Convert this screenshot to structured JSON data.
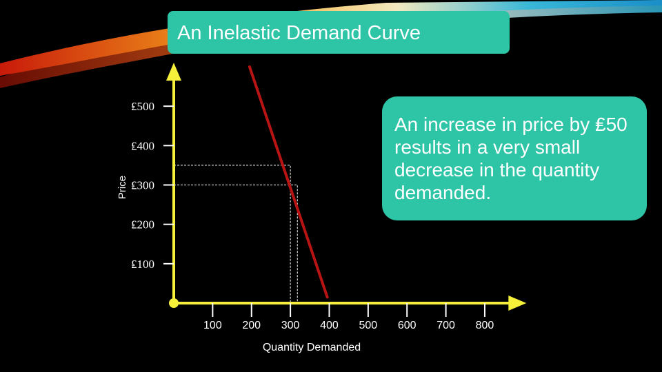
{
  "slide": {
    "title": "An Inelastic Demand Curve",
    "note": "An increase in price by ₤50 results in a very small decrease in the quantity demanded."
  },
  "colors": {
    "background": "#000000",
    "box": "#2ec4a6",
    "axis": "#f7f03a",
    "curve": "#b81414",
    "guides": "#ffffff"
  },
  "chart_data": {
    "type": "line",
    "xlabel": "Quantity Demanded",
    "ylabel": "Price",
    "x_ticks": [
      100,
      200,
      300,
      400,
      500,
      600,
      700,
      800
    ],
    "x_tick_labels": [
      "100",
      "200",
      "300",
      "400",
      "500",
      "600",
      "700",
      "800"
    ],
    "y_ticks": [
      100,
      200,
      300,
      400,
      500
    ],
    "y_tick_labels": [
      "₤100",
      "₤200",
      "₤300",
      "₤400",
      "₤500"
    ],
    "xlim": [
      0,
      900
    ],
    "ylim": [
      0,
      600
    ],
    "series": [
      {
        "x": [
          195,
          395
        ],
        "y": [
          600,
          15
        ]
      }
    ],
    "guides": [
      {
        "x": 300,
        "y": 350
      },
      {
        "x": 318,
        "y": 300
      }
    ],
    "grid": false
  }
}
